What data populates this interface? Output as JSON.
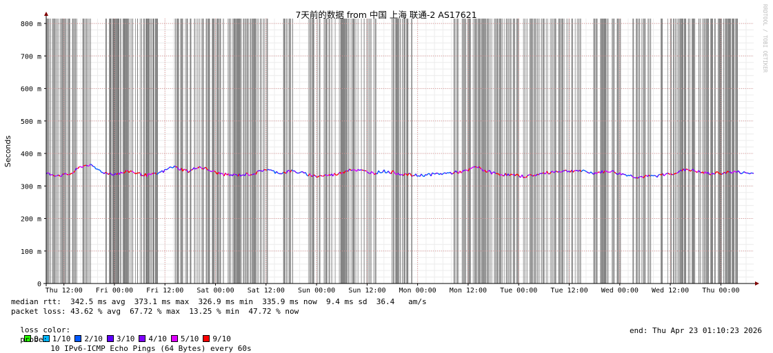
{
  "chart_data": {
    "type": "line",
    "title": "7天前的数据 from 中国 上海 联通-2 AS17621",
    "ylabel": "Seconds",
    "watermark": "RRDTOOL / TOBI OETIKER",
    "y_ticks": [
      {
        "value": 0,
        "label": "0"
      },
      {
        "value": 100,
        "label": "100 m"
      },
      {
        "value": 200,
        "label": "200 m"
      },
      {
        "value": 300,
        "label": "300 m"
      },
      {
        "value": 400,
        "label": "400 m"
      },
      {
        "value": 500,
        "label": "500 m"
      },
      {
        "value": 600,
        "label": "600 m"
      },
      {
        "value": 700,
        "label": "700 m"
      },
      {
        "value": 800,
        "label": "800 m"
      }
    ],
    "ylim": [
      0,
      815
    ],
    "xlim_hours": [
      0,
      168
    ],
    "x_ticks": [
      {
        "hour": 4.2,
        "label": "Thu 12:00"
      },
      {
        "hour": 16.2,
        "label": "Fri 00:00"
      },
      {
        "hour": 28.2,
        "label": "Fri 12:00"
      },
      {
        "hour": 40.2,
        "label": "Sat 00:00"
      },
      {
        "hour": 52.2,
        "label": "Sat 12:00"
      },
      {
        "hour": 64.2,
        "label": "Sun 00:00"
      },
      {
        "hour": 76.2,
        "label": "Sun 12:00"
      },
      {
        "hour": 88.2,
        "label": "Mon 00:00"
      },
      {
        "hour": 100.2,
        "label": "Mon 12:00"
      },
      {
        "hour": 112.2,
        "label": "Tue 00:00"
      },
      {
        "hour": 124.2,
        "label": "Tue 12:00"
      },
      {
        "hour": 136.2,
        "label": "Wed 00:00"
      },
      {
        "hour": 148.2,
        "label": "Wed 12:00"
      },
      {
        "hour": 160.2,
        "label": "Thu 00:00"
      }
    ],
    "median_rtt_ms": {
      "hours": [
        0,
        2,
        4,
        6,
        8,
        10,
        12,
        14,
        16,
        18,
        20,
        22,
        24,
        26,
        28,
        30,
        32,
        34,
        36,
        38,
        40,
        42,
        44,
        46,
        48,
        50,
        52,
        54,
        56,
        58,
        60,
        62,
        64,
        66,
        68,
        70,
        72,
        74,
        76,
        78,
        80,
        82,
        84,
        86,
        88,
        90,
        92,
        94,
        96,
        98,
        100,
        102,
        104,
        106,
        108,
        110,
        112,
        114,
        116,
        118,
        120,
        122,
        124,
        126,
        128,
        130,
        132,
        134,
        136,
        138,
        140,
        142,
        144,
        146,
        148,
        150,
        152,
        154,
        156,
        158,
        160,
        162,
        164,
        166,
        168
      ],
      "values": [
        338,
        334,
        333,
        338,
        358,
        366,
        352,
        340,
        337,
        340,
        346,
        337,
        333,
        336,
        346,
        360,
        352,
        344,
        360,
        352,
        342,
        336,
        333,
        334,
        336,
        340,
        352,
        344,
        340,
        346,
        342,
        336,
        330,
        332,
        334,
        340,
        352,
        348,
        344,
        340,
        346,
        342,
        338,
        334,
        332,
        334,
        336,
        338,
        340,
        343,
        346,
        360,
        348,
        340,
        336,
        334,
        331,
        330,
        334,
        338,
        343,
        346,
        346,
        348,
        343,
        340,
        343,
        346,
        338,
        334,
        328,
        328,
        330,
        333,
        338,
        342,
        352,
        346,
        340,
        338,
        340,
        342,
        343,
        340,
        338
      ]
    },
    "loss_spans_hours": [
      [
        0.2,
        10.8
      ],
      [
        14.0,
        26.5
      ],
      [
        30.6,
        52.6
      ],
      [
        56.4,
        58.6
      ],
      [
        62.4,
        78.4
      ],
      [
        81.8,
        87.6
      ],
      [
        96.8,
        127.2
      ],
      [
        130.0,
        136.7
      ],
      [
        139.3,
        143.6
      ],
      [
        145.8,
        164.2
      ]
    ]
  },
  "legend": {
    "median_rtt": "median rtt:  342.5 ms avg  373.1 ms max  326.9 ms min  335.9 ms now  9.4 ms sd  36.4   am/s",
    "packet_loss": "packet loss: 43.62 % avg  67.72 % max  13.25 % min  47.72 % now",
    "loss_color_label": "loss color:",
    "loss_colors": [
      {
        "label": "0",
        "color": "#26ff00"
      },
      {
        "label": "1/10",
        "color": "#00b8ff"
      },
      {
        "label": "2/10",
        "color": "#0059ff"
      },
      {
        "label": "3/10",
        "color": "#5e00ff"
      },
      {
        "label": "4/10",
        "color": "#7e00ff"
      },
      {
        "label": "5/10",
        "color": "#dd00ff"
      },
      {
        "label": "9/10",
        "color": "#ff0000"
      }
    ],
    "probe_label": "probe:",
    "probe_text": "10 IPv6-ICMP Echo Pings (64 Bytes) every 60s",
    "end_text": "end: Thu Apr 23 01:10:23 2026"
  },
  "colors": {
    "loss_bar": "#7a7a7a",
    "grid_major": "#e09090",
    "grid_minor": "#ececec",
    "axis": "#000000",
    "arrow": "#800000"
  }
}
